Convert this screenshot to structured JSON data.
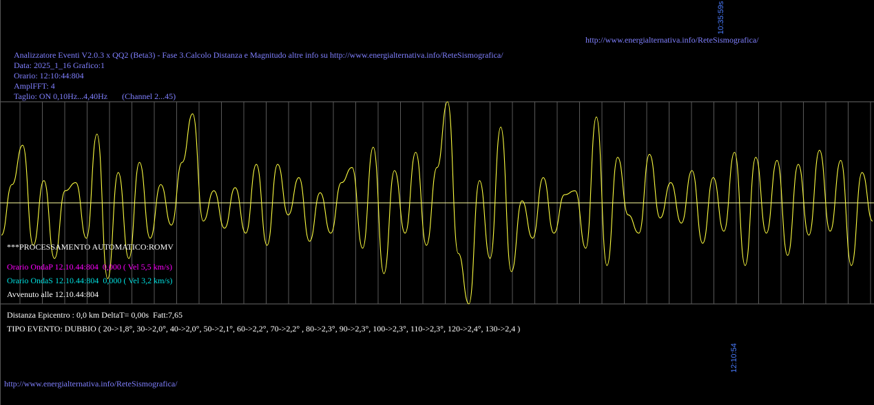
{
  "header": {
    "url_top": "http://www.energialternativa.info/ReteSismografica/",
    "time_marker_top": "10:35:59s",
    "info_lines": [
      "Analizzatore Eventi V2.0.3 x QQ2 (Beta3) - Fase 3.Calcolo Distanza e Magnitudo altre info su http://www.energialternativa.info/ReteSismografica/",
      "Data: 2025_1_16 Grafico:1",
      "Orario: 12:10:44:804",
      "AmplFFT: 4",
      "Taglio: ON 0,10Hz...4,40Hz       (Channel 2...45)"
    ]
  },
  "overlay": {
    "processing": "***PROCESSAMENTO AUTOMATICO:ROMV",
    "onda_p": "Orario OndaP 12.10.44:804  0,000 ( Vel 5,5 km/s)",
    "onda_s": "Orario OndaS 12.10.44:804  0,000 ( Vel 3,2 km/s)",
    "avvenuto": "Avvenuto alle 12.10.44:804"
  },
  "results": {
    "distanza": "Distanza Epicentro : 0,0 km DeltaT= 0,00s  Fatt:7,65",
    "tipo_evento": "TIPO EVENTO: DUBBIO ( 20->1,8°, 30->2,0°, 40->2,0°, 50->2,1°, 60->2,2°, 70->2,2° , 80->2,3°, 90->2,3°, 100->2,3°, 110->2,3°, 120->2,4°, 130->2,4 )"
  },
  "footer": {
    "url_bottom": "http://www.energialternativa.info/ReteSismografica/",
    "time_marker_bottom": "12:10:54"
  },
  "colors": {
    "background": "#000000",
    "trace": "#ffff40",
    "grid": "#5a5a5a",
    "baseline": "#ffffa0",
    "label_blue": "#8080ff",
    "onda_p": "#ff00ff",
    "onda_s": "#00e0e0"
  },
  "chart_data": {
    "type": "line",
    "title": "",
    "xlabel": "",
    "ylabel": "",
    "grid": true,
    "x_start": "12:10:44",
    "x_end": "12:10:54",
    "ylim": [
      -1,
      1
    ],
    "series": [
      {
        "values": [
          -0.32,
          0.18,
          0.57,
          -0.42,
          0.22,
          -0.55,
          0.12,
          0.2,
          -0.35,
          0.68,
          -0.75,
          0.3,
          -0.55,
          0.4,
          -0.35,
          0.18,
          -0.22,
          0.4,
          0.88,
          -0.18,
          0.12,
          -0.25,
          0.15,
          -0.3,
          0.38,
          -0.42,
          0.38,
          -0.12,
          0.25,
          -0.38,
          0.1,
          -0.3,
          0.2,
          0.35,
          -0.45,
          0.55,
          -0.7,
          0.32,
          -0.3,
          0.5,
          -0.42,
          0.35,
          1.0,
          -0.5,
          -1.0,
          0.22,
          -0.55,
          0.75,
          -0.68,
          0.02,
          -0.35,
          0.25,
          -0.3,
          0.08,
          0.12,
          -0.45,
          0.85,
          -0.62,
          0.45,
          -0.12,
          -0.3,
          0.48,
          -0.15,
          0.2,
          -0.2,
          0.32,
          -0.4,
          0.25,
          -0.28,
          0.5,
          -0.62,
          0.45,
          -0.3,
          0.42,
          -0.52,
          0.38,
          -0.32,
          0.52,
          -0.28,
          0.42,
          -0.62,
          0.3,
          -0.18
        ]
      }
    ]
  }
}
